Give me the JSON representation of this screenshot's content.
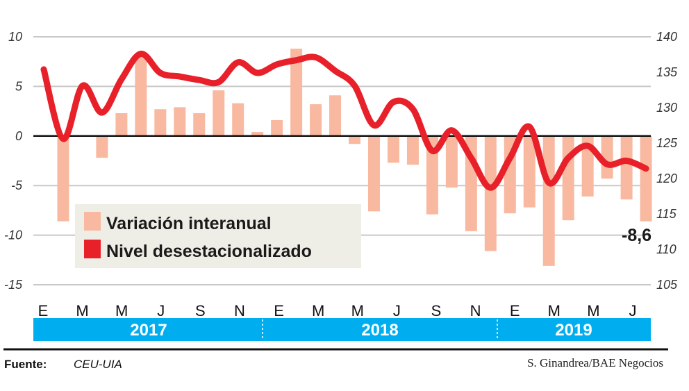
{
  "chart_data": {
    "type": "bar+line",
    "x_tick_labels": [
      "E",
      "M",
      "M",
      "J",
      "S",
      "N",
      "E",
      "M",
      "M",
      "J",
      "S",
      "N",
      "E",
      "M",
      "M",
      "J"
    ],
    "years": [
      "2017",
      "2018",
      "2019"
    ],
    "series": [
      {
        "name": "Variación interanual",
        "type": "bar",
        "axis": "left",
        "color": "#f8b9a0",
        "values": [
          null,
          -8.6,
          0,
          -2.2,
          2.3,
          8.2,
          2.7,
          2.9,
          2.3,
          4.6,
          3.3,
          0.4,
          1.6,
          8.8,
          3.2,
          4.1,
          -0.8,
          -7.6,
          -2.7,
          -2.9,
          -7.9,
          -5.2,
          -9.6,
          -11.6,
          -7.8,
          -7.2,
          -13.1,
          -8.5,
          -6.1,
          -4.3,
          -6.4,
          -8.6
        ]
      },
      {
        "name": "Nivel desestacionalizado",
        "type": "line",
        "axis": "right",
        "color": "#e8202a",
        "values": [
          135.4,
          125.6,
          133.1,
          129.3,
          134.0,
          137.6,
          134.9,
          134.4,
          133.9,
          133.6,
          136.4,
          134.9,
          136.1,
          136.7,
          137.1,
          135.2,
          133.1,
          127.5,
          130.8,
          129.8,
          123.9,
          126.8,
          122.9,
          118.7,
          122.9,
          127.3,
          119.4,
          122.9,
          124.6,
          122.0,
          122.5,
          121.4
        ]
      }
    ],
    "left_axis": {
      "ylim": [
        -15,
        10
      ],
      "ticks": [
        "10",
        "5",
        "0",
        "-5",
        "-10",
        "-15"
      ]
    },
    "right_axis": {
      "ylim": [
        105,
        140
      ],
      "ticks": [
        "140",
        "135",
        "130",
        "125",
        "120",
        "115",
        "110",
        "105"
      ]
    },
    "annotation": "-8,6",
    "grid": true,
    "legend_placement": "bottom-left"
  },
  "footer": {
    "source_label": "Fuente:",
    "source_value": "CEU-UIA",
    "credit": "S. Ginandrea/BAE Negocios"
  },
  "colors": {
    "year_band": "#00aeef",
    "legend_bg": "#efeee6"
  }
}
